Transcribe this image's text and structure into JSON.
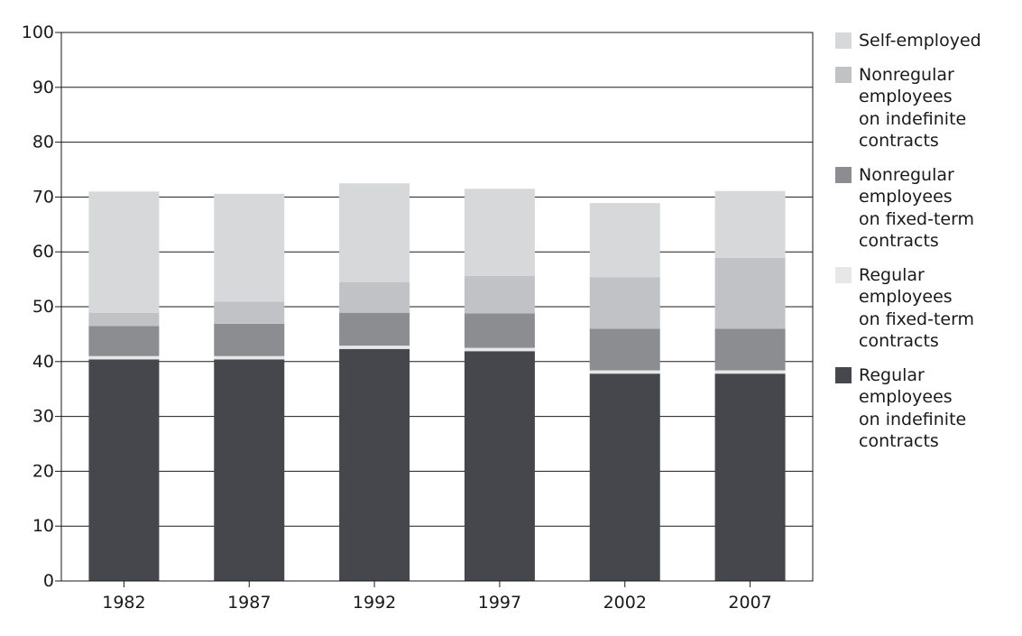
{
  "chart_data": {
    "type": "bar",
    "stacked": true,
    "categories": [
      "1982",
      "1987",
      "1992",
      "1997",
      "2002",
      "2007"
    ],
    "ylim": [
      0,
      100
    ],
    "yticks": [
      "0",
      "10",
      "20",
      "30",
      "40",
      "50",
      "60",
      "70",
      "80",
      "90",
      "100"
    ],
    "grid": true,
    "legend_position": "right",
    "series": [
      {
        "name": "Regular\nemployees\non indefinite\ncontracts",
        "color": "#45474c",
        "values": [
          40.4,
          40.4,
          42.3,
          41.9,
          37.8,
          37.8
        ]
      },
      {
        "name": "Regular\nemployees\non fixed-term\ncontracts",
        "color": "#e6e7e9",
        "values": [
          0.6,
          0.6,
          0.6,
          0.6,
          0.6,
          0.6
        ]
      },
      {
        "name": "Nonregular\nemployees\non fixed-term\ncontracts",
        "color": "#8b8d90",
        "values": [
          5.5,
          5.9,
          6.0,
          6.3,
          7.6,
          7.6
        ]
      },
      {
        "name": "Nonregular\nemployees\non indefinite\ncontracts",
        "color": "#c0c2c6",
        "values": [
          2.4,
          4.0,
          5.6,
          6.8,
          9.4,
          12.9
        ]
      },
      {
        "name": "Self-employed",
        "color": "#d7d8da",
        "values": [
          22.1,
          19.7,
          18.0,
          15.9,
          13.5,
          12.2
        ]
      }
    ],
    "legend_order": [
      4,
      3,
      2,
      1,
      0
    ],
    "title": "",
    "xlabel": "",
    "ylabel": ""
  }
}
